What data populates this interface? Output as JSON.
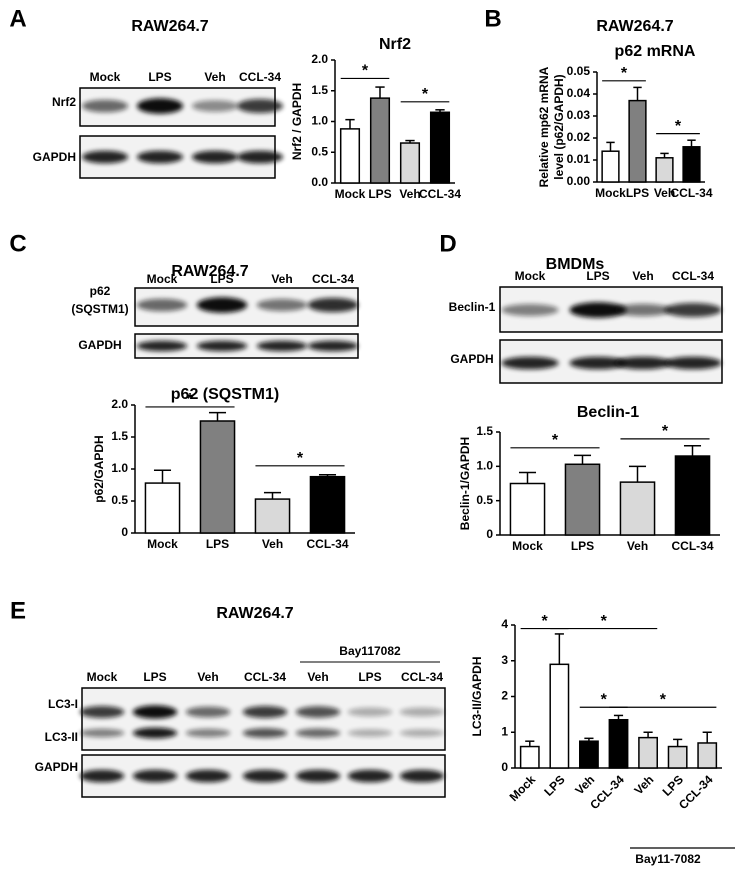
{
  "panels": [
    {
      "letter": "A",
      "title": "RAW264.7",
      "lanes": [
        "Mock",
        "LPS",
        "Veh",
        "CCL-34"
      ],
      "rows": [
        "Nrf2",
        "GAPDH"
      ]
    },
    {
      "letter": "B",
      "title": "RAW264.7"
    },
    {
      "letter": "C",
      "title": "RAW264.7",
      "lanes": [
        "Mock",
        "LPS",
        "Veh",
        "CCL-34"
      ],
      "rows": [
        "p62",
        "(SQSTM1)",
        "GAPDH"
      ]
    },
    {
      "letter": "D",
      "title": "BMDMs",
      "lanes": [
        "Mock",
        "LPS",
        "Veh",
        "CCL-34"
      ],
      "rows": [
        "Beclin-1",
        "GAPDH"
      ]
    },
    {
      "letter": "E",
      "title": "RAW264.7",
      "group_label": "Bay117082",
      "lanes": [
        "Mock",
        "LPS",
        "Veh",
        "CCL-34",
        "Veh",
        "LPS",
        "CCL-34"
      ],
      "rows": [
        "LC3-I",
        "LC3-II",
        "GAPDH"
      ]
    }
  ],
  "chart_data": [
    {
      "type": "bar",
      "title": "Nrf2",
      "ylabel": [
        "Nrf2 / GAPDH"
      ],
      "categories": [
        "Mock",
        "LPS",
        "Veh",
        "CCL-34"
      ],
      "values": [
        0.88,
        1.38,
        0.65,
        1.15
      ],
      "errors": [
        0.15,
        0.18,
        0.04,
        0.04
      ],
      "colors": [
        "#ffffff",
        "#808080",
        "#d9d9d9",
        "#000000"
      ],
      "ylim": [
        0,
        2
      ],
      "yticks": [
        {
          "value": 0,
          "label": "0.0"
        },
        0.5,
        {
          "value": 1,
          "label": "1.0"
        },
        1.5,
        {
          "value": 2,
          "label": "2.0"
        }
      ],
      "significance": [
        "*",
        "*"
      ]
    },
    {
      "type": "bar",
      "title": "p62 mRNA",
      "ylabel": [
        "Relative mp62 mRNA",
        "level (p62/GAPDH)"
      ],
      "categories": [
        "Mock",
        "LPS",
        "Veh",
        "CCL-34"
      ],
      "values": [
        0.014,
        0.037,
        0.011,
        0.016
      ],
      "errors": [
        0.004,
        0.006,
        0.002,
        0.003
      ],
      "colors": [
        "#ffffff",
        "#808080",
        "#d9d9d9",
        "#000000"
      ],
      "ylim": [
        0,
        0.05
      ],
      "yticks": [
        {
          "value": 0,
          "label": "0.00"
        },
        {
          "value": 0.01,
          "label": "0.01"
        },
        {
          "value": 0.02,
          "label": "0.02"
        },
        {
          "value": 0.03,
          "label": "0.03"
        },
        {
          "value": 0.04,
          "label": "0.04"
        },
        {
          "value": 0.05,
          "label": "0.05"
        }
      ],
      "significance": [
        "*",
        "*"
      ]
    },
    {
      "type": "bar",
      "title": "p62 (SQSTM1)",
      "ylabel": [
        "p62/GAPDH"
      ],
      "categories": [
        "Mock",
        "LPS",
        "Veh",
        "CCL-34"
      ],
      "values": [
        0.78,
        1.75,
        0.53,
        0.88
      ],
      "errors": [
        0.2,
        0.13,
        0.1,
        0.03
      ],
      "colors": [
        "#ffffff",
        "#808080",
        "#d9d9d9",
        "#000000"
      ],
      "ylim": [
        0,
        2
      ],
      "yticks": [
        0,
        0.5,
        {
          "value": 1,
          "label": "1.0"
        },
        1.5,
        {
          "value": 2,
          "label": "2.0"
        }
      ],
      "significance": [
        "*",
        "*"
      ]
    },
    {
      "type": "bar",
      "title": "Beclin-1",
      "ylabel": [
        "Beclin-1/GAPDH"
      ],
      "categories": [
        "Mock",
        "LPS",
        "Veh",
        "CCL-34"
      ],
      "values": [
        0.75,
        1.03,
        0.77,
        1.15
      ],
      "errors": [
        0.16,
        0.13,
        0.23,
        0.15
      ],
      "colors": [
        "#ffffff",
        "#808080",
        "#d9d9d9",
        "#000000"
      ],
      "ylim": [
        0,
        1.5
      ],
      "yticks": [
        0,
        0.5,
        {
          "value": 1,
          "label": "1.0"
        },
        1.5
      ],
      "significance": [
        "*",
        "*"
      ]
    },
    {
      "type": "bar",
      "title": null,
      "ylabel": [
        "LC3-II/GAPDH"
      ],
      "categories": [
        "Mock",
        "LPS",
        "Veh",
        "CCL-34",
        "Veh",
        "LPS",
        "CCL-34"
      ],
      "values": [
        0.6,
        2.9,
        0.75,
        1.35,
        0.85,
        0.6,
        0.7
      ],
      "errors": [
        0.15,
        0.85,
        0.08,
        0.12,
        0.15,
        0.2,
        0.3
      ],
      "colors": [
        "#ffffff",
        "#ffffff",
        "#000000",
        "#000000",
        "#d9d9d9",
        "#d9d9d9",
        "#d9d9d9"
      ],
      "ylim": [
        0,
        4
      ],
      "yticks": [
        0,
        1,
        2,
        3,
        4
      ],
      "significance": [
        "*",
        "*",
        "*",
        "*"
      ],
      "group_label": "Bay11-7082"
    }
  ]
}
